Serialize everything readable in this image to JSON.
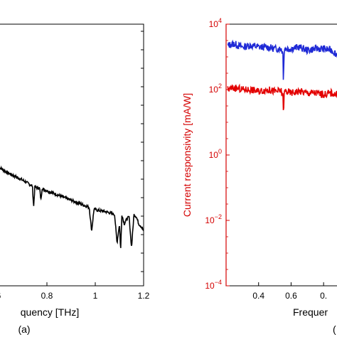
{
  "chart_data": [
    {
      "type": "line",
      "panel_label": "(a)",
      "xlabel": "quency [THz]",
      "x_ticks": [
        "6",
        "0.8",
        "1",
        "1.2"
      ],
      "x_tick_values": [
        0.6,
        0.8,
        1.0,
        1.2
      ],
      "xlim": [
        0.6,
        1.2
      ],
      "yscale": "log",
      "ylim_log10": [
        -1.5,
        4
      ],
      "series": [
        {
          "color": "#000000",
          "x": [
            0.6,
            0.63,
            0.66,
            0.7,
            0.72,
            0.74,
            0.745,
            0.75,
            0.755,
            0.77,
            0.775,
            0.78,
            0.785,
            0.8,
            0.85,
            0.9,
            0.95,
            0.975,
            0.985,
            0.995,
            1.0,
            1.05,
            1.08,
            1.09,
            1.1,
            1.105,
            1.11,
            1.12,
            1.13,
            1.14,
            1.15,
            1.16,
            1.17,
            1.18,
            1.19,
            1.2
          ],
          "y_log10": [
            1.0,
            0.9,
            0.82,
            0.72,
            0.66,
            0.6,
            0.15,
            0.58,
            0.57,
            0.55,
            0.3,
            0.54,
            0.53,
            0.5,
            0.4,
            0.3,
            0.2,
            0.15,
            -0.35,
            0.12,
            0.1,
            0.05,
            0.0,
            -0.6,
            -0.2,
            -0.75,
            0.0,
            -0.2,
            -0.1,
            -0.05,
            -0.7,
            0.0,
            -0.05,
            -0.2,
            -0.25,
            -0.35
          ]
        }
      ]
    },
    {
      "type": "line",
      "panel_label": "(",
      "xlabel": "Frequer",
      "ylabel": "Current responsivity [mA/W]",
      "x_ticks": [
        "0.4",
        "0.6",
        "0."
      ],
      "x_tick_values": [
        0.4,
        0.6,
        0.8
      ],
      "xlim": [
        0.2,
        0.9
      ],
      "yscale": "log",
      "ylim": [
        "1e-4",
        "1e4"
      ],
      "y_ticks": [
        {
          "base": "10",
          "exp": "4"
        },
        {
          "base": "10",
          "exp": "2"
        },
        {
          "base": "10",
          "exp": "0"
        },
        {
          "base": "10",
          "exp": "−2"
        },
        {
          "base": "10",
          "exp": "−4"
        }
      ],
      "y_tick_log10": [
        4,
        2,
        0,
        -2,
        -4
      ],
      "ylabel_color": "#d40000",
      "series": [
        {
          "color": "#1f2ad6",
          "x": [
            0.21,
            0.25,
            0.3,
            0.35,
            0.4,
            0.45,
            0.5,
            0.54,
            0.55,
            0.553,
            0.556,
            0.56,
            0.6,
            0.65,
            0.7,
            0.75,
            0.8,
            0.85,
            0.9
          ],
          "y_log10": [
            3.35,
            3.4,
            3.3,
            3.35,
            3.3,
            3.3,
            3.25,
            3.25,
            3.1,
            2.2,
            3.0,
            3.25,
            3.25,
            3.3,
            3.2,
            3.25,
            3.25,
            3.2,
            3.0
          ]
        },
        {
          "color": "#e30000",
          "x": [
            0.21,
            0.25,
            0.3,
            0.35,
            0.4,
            0.45,
            0.5,
            0.54,
            0.55,
            0.553,
            0.556,
            0.56,
            0.6,
            0.65,
            0.7,
            0.75,
            0.8,
            0.85,
            0.9
          ],
          "y_log10": [
            2.0,
            2.05,
            2.0,
            2.0,
            1.95,
            2.0,
            1.95,
            1.95,
            1.8,
            1.2,
            1.7,
            1.95,
            1.9,
            1.95,
            1.9,
            1.9,
            1.85,
            1.9,
            1.8
          ]
        }
      ]
    }
  ]
}
